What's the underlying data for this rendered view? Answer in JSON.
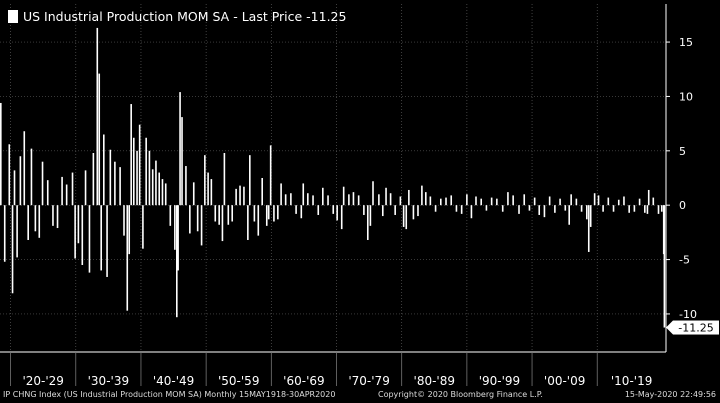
{
  "chart_data": {
    "type": "bar",
    "title": "US Industrial Production MOM SA - Last Price -11.25",
    "legend": {
      "label": "US Industrial Production MOM SA - Last Price -11.25",
      "position": "top-left"
    },
    "last_price_label": "-11.25",
    "last_value": -11.25,
    "ylim": [
      -13.5,
      18.5
    ],
    "yticks": [
      15,
      10,
      5,
      0,
      -5,
      -10
    ],
    "ytick_labels": [
      "15",
      "10",
      "5",
      "0",
      "-5",
      "-10"
    ],
    "xlim": [
      1918.375,
      2020.55
    ],
    "decades": [
      {
        "label": "'20-'29",
        "start": 1920
      },
      {
        "label": "'30-'39",
        "start": 1930
      },
      {
        "label": "'40-'49",
        "start": 1940
      },
      {
        "label": "'50-'59",
        "start": 1950
      },
      {
        "label": "'60-'69",
        "start": 1960
      },
      {
        "label": "'70-'79",
        "start": 1970
      },
      {
        "label": "'80-'89",
        "start": 1980
      },
      {
        "label": "'90-'99",
        "start": 1990
      },
      {
        "label": "'00-'09",
        "start": 2000
      },
      {
        "label": "'10-'19",
        "start": 2010
      }
    ],
    "series": [
      {
        "name": "US Industrial Production MOM SA",
        "color": "#ffffff",
        "points": [
          {
            "x": 1918.5,
            "y": 9.4
          },
          {
            "x": 1919.1,
            "y": -5.2
          },
          {
            "x": 1919.8,
            "y": 5.6
          },
          {
            "x": 1920.3,
            "y": -8.1
          },
          {
            "x": 1920.6,
            "y": 3.2
          },
          {
            "x": 1921.0,
            "y": -4.8
          },
          {
            "x": 1921.5,
            "y": 4.5
          },
          {
            "x": 1922.1,
            "y": 6.8
          },
          {
            "x": 1922.7,
            "y": -3.2
          },
          {
            "x": 1923.2,
            "y": 5.2
          },
          {
            "x": 1923.8,
            "y": -2.4
          },
          {
            "x": 1924.4,
            "y": -3.0
          },
          {
            "x": 1924.9,
            "y": 4.0
          },
          {
            "x": 1925.7,
            "y": 2.3
          },
          {
            "x": 1926.5,
            "y": -1.9
          },
          {
            "x": 1927.2,
            "y": -2.1
          },
          {
            "x": 1927.9,
            "y": 2.6
          },
          {
            "x": 1928.6,
            "y": 1.9
          },
          {
            "x": 1929.5,
            "y": 3.0
          },
          {
            "x": 1929.9,
            "y": -4.9
          },
          {
            "x": 1930.4,
            "y": -3.5
          },
          {
            "x": 1931.0,
            "y": -5.5
          },
          {
            "x": 1931.5,
            "y": 3.2
          },
          {
            "x": 1932.1,
            "y": -6.2
          },
          {
            "x": 1932.7,
            "y": 4.8
          },
          {
            "x": 1933.3,
            "y": 16.3
          },
          {
            "x": 1933.6,
            "y": 12.1
          },
          {
            "x": 1933.9,
            "y": -6.0
          },
          {
            "x": 1934.3,
            "y": 6.5
          },
          {
            "x": 1934.8,
            "y": -6.6
          },
          {
            "x": 1935.3,
            "y": 5.1
          },
          {
            "x": 1936.0,
            "y": 4.0
          },
          {
            "x": 1936.8,
            "y": 3.5
          },
          {
            "x": 1937.4,
            "y": -2.8
          },
          {
            "x": 1937.9,
            "y": -9.7
          },
          {
            "x": 1938.2,
            "y": -4.5
          },
          {
            "x": 1938.5,
            "y": 9.3
          },
          {
            "x": 1938.9,
            "y": 6.2
          },
          {
            "x": 1939.4,
            "y": 5.0
          },
          {
            "x": 1939.8,
            "y": 7.4
          },
          {
            "x": 1940.3,
            "y": -4.0
          },
          {
            "x": 1940.8,
            "y": 6.2
          },
          {
            "x": 1941.3,
            "y": 5.0
          },
          {
            "x": 1941.8,
            "y": 3.3
          },
          {
            "x": 1942.3,
            "y": 4.1
          },
          {
            "x": 1942.8,
            "y": 3.0
          },
          {
            "x": 1943.3,
            "y": 2.4
          },
          {
            "x": 1943.8,
            "y": 2.0
          },
          {
            "x": 1944.5,
            "y": -1.9
          },
          {
            "x": 1945.2,
            "y": -4.1
          },
          {
            "x": 1945.5,
            "y": -10.3
          },
          {
            "x": 1945.7,
            "y": -6.0
          },
          {
            "x": 1946.0,
            "y": 10.4
          },
          {
            "x": 1946.3,
            "y": 8.1
          },
          {
            "x": 1946.9,
            "y": 3.6
          },
          {
            "x": 1947.5,
            "y": -2.6
          },
          {
            "x": 1948.1,
            "y": 2.1
          },
          {
            "x": 1948.7,
            "y": -2.4
          },
          {
            "x": 1949.3,
            "y": -3.7
          },
          {
            "x": 1949.8,
            "y": 4.6
          },
          {
            "x": 1950.3,
            "y": 3.0
          },
          {
            "x": 1950.8,
            "y": 2.4
          },
          {
            "x": 1951.4,
            "y": -1.5
          },
          {
            "x": 1952.0,
            "y": -1.8
          },
          {
            "x": 1952.5,
            "y": -3.3
          },
          {
            "x": 1952.8,
            "y": 4.8
          },
          {
            "x": 1953.4,
            "y": -1.8
          },
          {
            "x": 1954.0,
            "y": -1.5
          },
          {
            "x": 1954.6,
            "y": 1.5
          },
          {
            "x": 1955.2,
            "y": 1.8
          },
          {
            "x": 1955.8,
            "y": 1.7
          },
          {
            "x": 1956.4,
            "y": -3.2
          },
          {
            "x": 1956.7,
            "y": 4.6
          },
          {
            "x": 1957.4,
            "y": -1.5
          },
          {
            "x": 1958.0,
            "y": -2.8
          },
          {
            "x": 1958.6,
            "y": 2.5
          },
          {
            "x": 1959.3,
            "y": -1.9
          },
          {
            "x": 1959.6,
            "y": -1.3
          },
          {
            "x": 1959.9,
            "y": 5.5
          },
          {
            "x": 1960.4,
            "y": -1.5
          },
          {
            "x": 1961.0,
            "y": -1.3
          },
          {
            "x": 1961.5,
            "y": 2.0
          },
          {
            "x": 1962.2,
            "y": 1.0
          },
          {
            "x": 1963.0,
            "y": 1.1
          },
          {
            "x": 1963.8,
            "y": -0.8
          },
          {
            "x": 1964.6,
            "y": -1.2
          },
          {
            "x": 1964.9,
            "y": 2.0
          },
          {
            "x": 1965.6,
            "y": 1.1
          },
          {
            "x": 1966.4,
            "y": 0.9
          },
          {
            "x": 1967.2,
            "y": -0.9
          },
          {
            "x": 1967.9,
            "y": 1.6
          },
          {
            "x": 1968.7,
            "y": 0.9
          },
          {
            "x": 1969.5,
            "y": -0.8
          },
          {
            "x": 1970.1,
            "y": -1.4
          },
          {
            "x": 1970.8,
            "y": -2.2
          },
          {
            "x": 1971.1,
            "y": 1.7
          },
          {
            "x": 1971.9,
            "y": 1.0
          },
          {
            "x": 1972.6,
            "y": 1.2
          },
          {
            "x": 1973.4,
            "y": 0.9
          },
          {
            "x": 1974.2,
            "y": -0.9
          },
          {
            "x": 1974.8,
            "y": -3.2
          },
          {
            "x": 1975.2,
            "y": -1.9
          },
          {
            "x": 1975.6,
            "y": 2.2
          },
          {
            "x": 1976.5,
            "y": 1.0
          },
          {
            "x": 1977.1,
            "y": -1.0
          },
          {
            "x": 1977.6,
            "y": 1.6
          },
          {
            "x": 1978.3,
            "y": 1.1
          },
          {
            "x": 1979.0,
            "y": -0.9
          },
          {
            "x": 1979.8,
            "y": 0.8
          },
          {
            "x": 1980.3,
            "y": -2.0
          },
          {
            "x": 1980.7,
            "y": -2.2
          },
          {
            "x": 1981.1,
            "y": 1.4
          },
          {
            "x": 1981.8,
            "y": -1.3
          },
          {
            "x": 1982.5,
            "y": -1.0
          },
          {
            "x": 1983.1,
            "y": 1.8
          },
          {
            "x": 1983.7,
            "y": 1.2
          },
          {
            "x": 1984.4,
            "y": 0.8
          },
          {
            "x": 1985.2,
            "y": -0.6
          },
          {
            "x": 1986.0,
            "y": 0.6
          },
          {
            "x": 1986.8,
            "y": 0.7
          },
          {
            "x": 1987.6,
            "y": 0.9
          },
          {
            "x": 1988.4,
            "y": -0.6
          },
          {
            "x": 1989.2,
            "y": -0.8
          },
          {
            "x": 1990.0,
            "y": 1.0
          },
          {
            "x": 1990.7,
            "y": -1.2
          },
          {
            "x": 1991.4,
            "y": 0.8
          },
          {
            "x": 1992.2,
            "y": 0.6
          },
          {
            "x": 1993.0,
            "y": -0.5
          },
          {
            "x": 1993.8,
            "y": 0.7
          },
          {
            "x": 1994.6,
            "y": 0.6
          },
          {
            "x": 1995.5,
            "y": -0.6
          },
          {
            "x": 1996.3,
            "y": 1.2
          },
          {
            "x": 1997.1,
            "y": 0.9
          },
          {
            "x": 1998.0,
            "y": -0.8
          },
          {
            "x": 1998.8,
            "y": 1.0
          },
          {
            "x": 1999.6,
            "y": -0.5
          },
          {
            "x": 2000.4,
            "y": 0.7
          },
          {
            "x": 2001.1,
            "y": -0.9
          },
          {
            "x": 2001.9,
            "y": -1.1
          },
          {
            "x": 2002.7,
            "y": 0.8
          },
          {
            "x": 2003.5,
            "y": -0.7
          },
          {
            "x": 2004.3,
            "y": 0.6
          },
          {
            "x": 2005.1,
            "y": -0.5
          },
          {
            "x": 2005.7,
            "y": -1.8
          },
          {
            "x": 2006.0,
            "y": 1.0
          },
          {
            "x": 2006.8,
            "y": 0.6
          },
          {
            "x": 2007.6,
            "y": -0.6
          },
          {
            "x": 2008.4,
            "y": -1.3
          },
          {
            "x": 2008.7,
            "y": -4.3
          },
          {
            "x": 2009.0,
            "y": -2.0
          },
          {
            "x": 2009.6,
            "y": 1.1
          },
          {
            "x": 2010.2,
            "y": 0.9
          },
          {
            "x": 2010.9,
            "y": -0.6
          },
          {
            "x": 2011.7,
            "y": 0.7
          },
          {
            "x": 2012.5,
            "y": -0.6
          },
          {
            "x": 2013.3,
            "y": 0.5
          },
          {
            "x": 2014.1,
            "y": 0.8
          },
          {
            "x": 2014.9,
            "y": -0.7
          },
          {
            "x": 2015.7,
            "y": -0.6
          },
          {
            "x": 2016.5,
            "y": 0.6
          },
          {
            "x": 2017.3,
            "y": -0.7
          },
          {
            "x": 2017.7,
            "y": -0.8
          },
          {
            "x": 2017.9,
            "y": 1.4
          },
          {
            "x": 2018.6,
            "y": 0.7
          },
          {
            "x": 2019.4,
            "y": -0.8
          },
          {
            "x": 2019.9,
            "y": -0.6
          },
          {
            "x": 2020.2,
            "y": -4.5
          },
          {
            "x": 2020.3,
            "y": -11.25
          }
        ]
      }
    ]
  },
  "footer": {
    "left": "IP CHNG Index (US Industrial Production MOM SA)  Monthly 15MAY1918-30APR2020",
    "center": "Copyright© 2020 Bloomberg Finance L.P.",
    "right": "15-May-2020 22:49:56"
  }
}
